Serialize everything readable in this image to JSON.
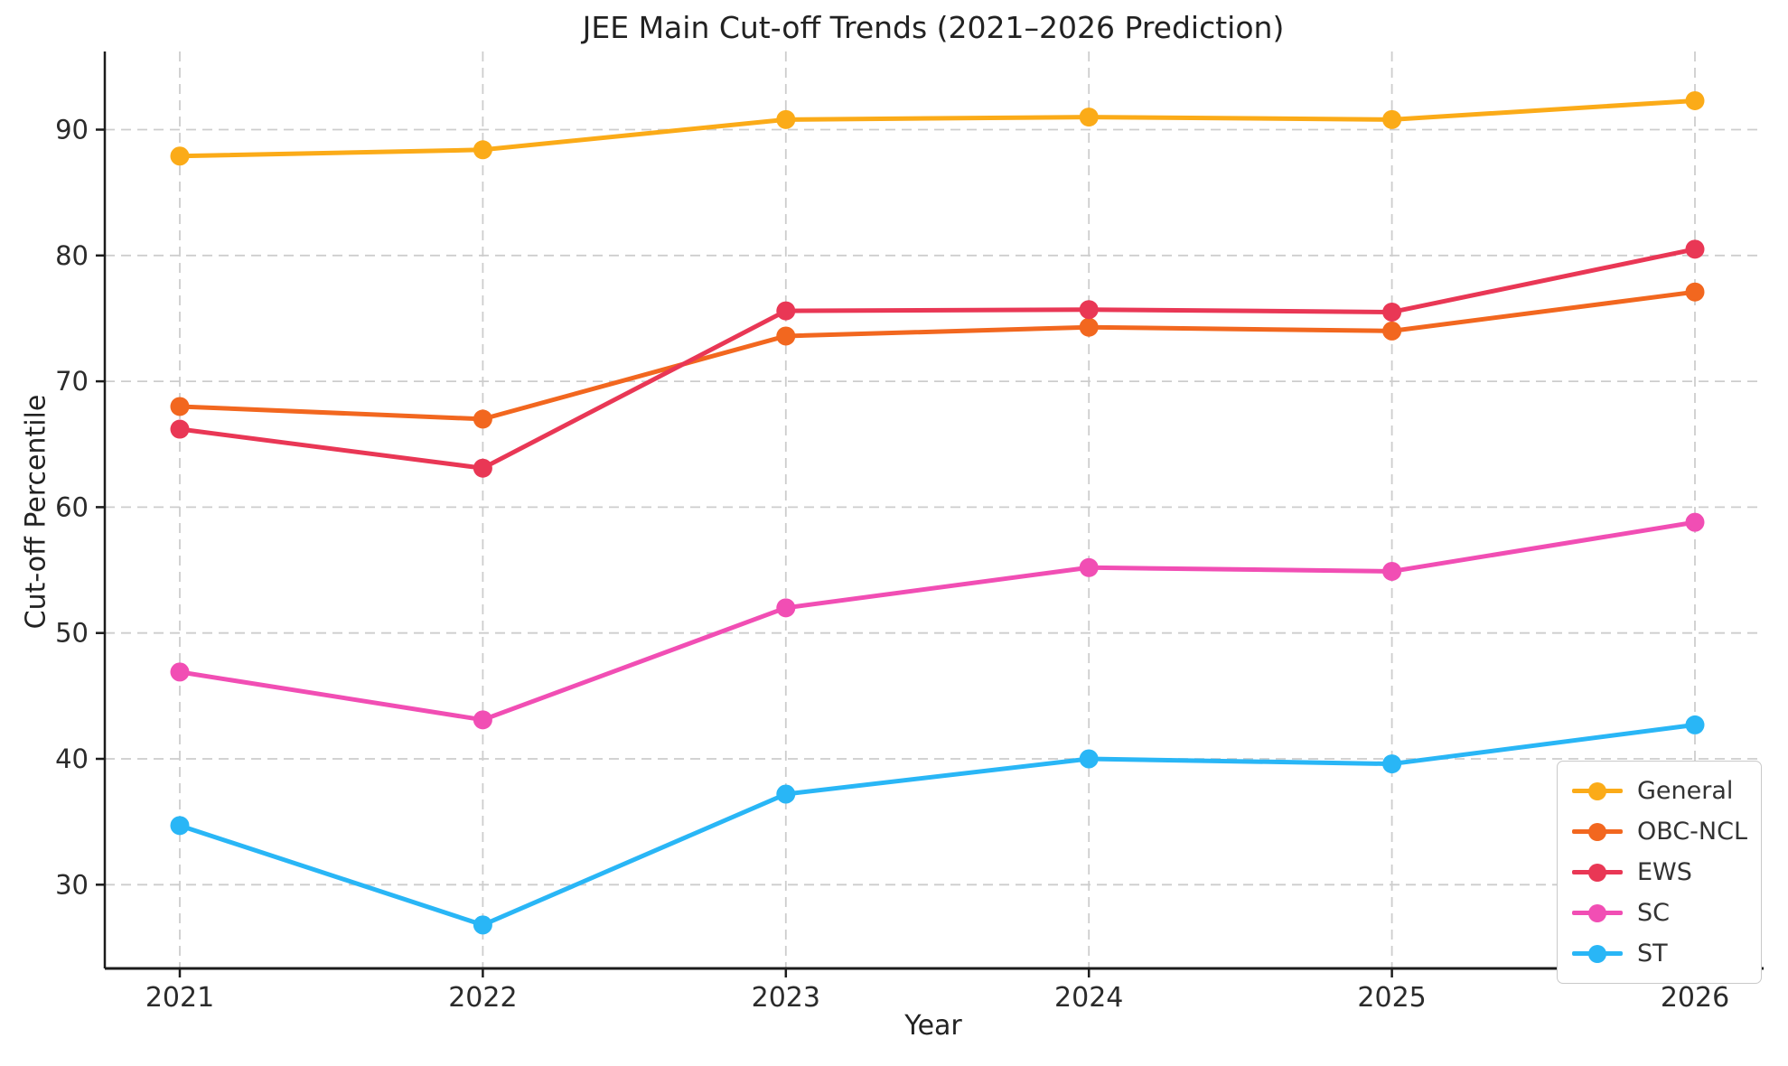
{
  "title": "JEE Main Cut-off Trends (2021–2026 Prediction)",
  "axes": {
    "xlabel": "Year",
    "ylabel": "Cut-off Percentile",
    "x_tick_labels": [
      "2021",
      "2022",
      "2023",
      "2024",
      "2025",
      "2026"
    ],
    "y_tick_labels": [
      "30",
      "40",
      "50",
      "60",
      "70",
      "80",
      "90"
    ],
    "y_ticks": [
      30,
      40,
      50,
      60,
      70,
      80,
      90
    ],
    "grid": "dashed light-gray, both directions",
    "spines": "left and bottom only"
  },
  "legend": {
    "position": "lower right",
    "entries": [
      "General",
      "OBC-NCL",
      "EWS",
      "SC",
      "ST"
    ]
  },
  "colors": {
    "general": "#FBAB18",
    "obc_ncl": "#F2671F",
    "ews": "#E93755",
    "sc": "#F14EB4",
    "st": "#29B6F6",
    "grid": "#cdcdcd",
    "spine": "#1c1c1c",
    "tick_text": "#2b2b2b"
  },
  "chart_data": {
    "type": "line",
    "title": "JEE Main Cut-off Trends (2021–2026 Prediction)",
    "xlabel": "Year",
    "ylabel": "Cut-off Percentile",
    "x": [
      2021,
      2022,
      2023,
      2024,
      2025,
      2026
    ],
    "ylim": [
      23.4,
      96.2
    ],
    "xlim": [
      2020.75,
      2026.2
    ],
    "grid": true,
    "legend_position": "lower right",
    "series": [
      {
        "name": "General",
        "color": "#FBAB18",
        "values": [
          87.9,
          88.4,
          90.8,
          91.0,
          90.8,
          92.3
        ]
      },
      {
        "name": "OBC-NCL",
        "color": "#F2671F",
        "values": [
          68.0,
          67.0,
          73.6,
          74.3,
          74.0,
          77.1
        ]
      },
      {
        "name": "EWS",
        "color": "#E93755",
        "values": [
          66.2,
          63.1,
          75.6,
          75.7,
          75.5,
          80.5
        ]
      },
      {
        "name": "SC",
        "color": "#F14EB4",
        "values": [
          46.9,
          43.1,
          52.0,
          55.2,
          54.9,
          58.8
        ]
      },
      {
        "name": "ST",
        "color": "#29B6F6",
        "values": [
          34.7,
          26.8,
          37.2,
          40.0,
          39.6,
          42.7
        ]
      }
    ]
  }
}
